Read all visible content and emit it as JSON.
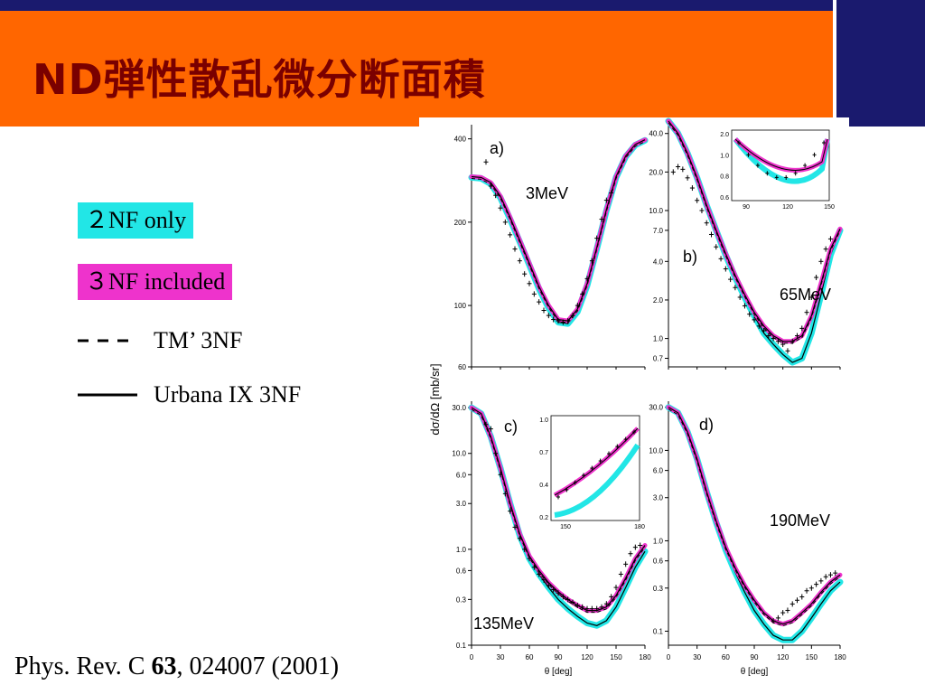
{
  "slide": {
    "title": "ND弾性散乱微分断面積",
    "legend": {
      "nf2_label": "２NF only",
      "nf3_label": "３NF included",
      "tm_label": "TM’ 3NF",
      "urbana_label": "Urbana IX 3NF"
    },
    "reference": {
      "prefix": "Phys. Rev. C ",
      "volume": "63",
      "suffix": ", 024007 (2001)"
    },
    "colors": {
      "header": "#ff6600",
      "topbar": "#1a1a6e",
      "title": "#7a0000",
      "nf2": "#22e6e6",
      "nf3": "#ee33cc"
    }
  },
  "chart_data": [
    {
      "panel": "a)",
      "energy_label": "3MeV",
      "type": "line",
      "yscale": "log",
      "ylim": [
        60,
        450
      ],
      "yticks": [
        "400",
        "200",
        "100",
        "60"
      ],
      "ytick_values": [
        400,
        200,
        100,
        60
      ],
      "xlim": [
        0,
        180
      ],
      "xticks": [],
      "series": [
        {
          "name": "2NF only",
          "x": [
            0,
            10,
            20,
            30,
            40,
            50,
            60,
            70,
            80,
            90,
            100,
            110,
            120,
            130,
            140,
            150,
            160,
            170,
            180
          ],
          "y": [
            290,
            288,
            275,
            245,
            205,
            170,
            140,
            115,
            98,
            87,
            86,
            95,
            118,
            160,
            220,
            290,
            345,
            380,
            395
          ]
        },
        {
          "name": "3NF included",
          "x": [
            0,
            10,
            20,
            30,
            40,
            50,
            60,
            70,
            80,
            90,
            100,
            110,
            120,
            130,
            140,
            150,
            160,
            170,
            180
          ],
          "y": [
            292,
            290,
            278,
            248,
            208,
            172,
            142,
            117,
            100,
            89,
            88,
            97,
            120,
            162,
            222,
            292,
            347,
            382,
            397
          ]
        },
        {
          "name": "data",
          "x": [
            15,
            20,
            25,
            30,
            35,
            40,
            45,
            50,
            55,
            60,
            65,
            70,
            75,
            80,
            85,
            90,
            95,
            100,
            105,
            110,
            115,
            120,
            125,
            130,
            135,
            140,
            145
          ],
          "y": [
            330,
            270,
            250,
            225,
            200,
            180,
            160,
            145,
            130,
            120,
            110,
            103,
            96,
            92,
            89,
            88,
            87,
            88,
            92,
            100,
            110,
            125,
            145,
            175,
            205,
            240,
            255
          ]
        }
      ]
    },
    {
      "panel": "b)",
      "energy_label": "65MeV",
      "type": "line",
      "yscale": "log",
      "ylim": [
        0.6,
        50
      ],
      "yticks": [
        "40.0",
        "20.0",
        "10.0",
        "7.0",
        "4.0",
        "2.0",
        "1.0",
        "0.7"
      ],
      "ytick_values": [
        40,
        20,
        10,
        7,
        4,
        2,
        1,
        0.7
      ],
      "xlim": [
        0,
        180
      ],
      "xticks": [],
      "series": [
        {
          "name": "2NF only",
          "x": [
            0,
            10,
            20,
            30,
            40,
            50,
            60,
            70,
            80,
            90,
            100,
            110,
            120,
            130,
            140,
            150,
            160,
            170,
            180
          ],
          "y": [
            50,
            40,
            28,
            18,
            11,
            7,
            4.5,
            3,
            2.1,
            1.5,
            1.1,
            0.9,
            0.75,
            0.65,
            0.7,
            1.1,
            2.2,
            4.5,
            7
          ]
        },
        {
          "name": "3NF included",
          "x": [
            0,
            10,
            20,
            30,
            40,
            50,
            60,
            70,
            80,
            90,
            100,
            110,
            120,
            130,
            140,
            150,
            160,
            170,
            180
          ],
          "y": [
            50,
            40,
            28,
            18,
            11,
            7,
            4.6,
            3.1,
            2.2,
            1.6,
            1.25,
            1.05,
            0.95,
            0.95,
            1.05,
            1.5,
            2.7,
            5,
            7.2
          ]
        },
        {
          "name": "data",
          "x": [
            5,
            10,
            15,
            20,
            25,
            30,
            35,
            40,
            45,
            50,
            55,
            60,
            65,
            70,
            75,
            80,
            85,
            90,
            95,
            100,
            105,
            110,
            115,
            120,
            125,
            130,
            135,
            140,
            145,
            150,
            155,
            160,
            165,
            170
          ],
          "y": [
            20,
            22,
            21,
            18,
            15,
            12,
            10,
            8,
            6.5,
            5.2,
            4.2,
            3.5,
            2.9,
            2.5,
            2.1,
            1.8,
            1.55,
            1.4,
            1.25,
            1.15,
            1.05,
            1.0,
            0.95,
            0.9,
            0.8,
            0.95,
            1.05,
            1.2,
            1.6,
            2.1,
            3,
            4,
            5,
            6
          ]
        }
      ],
      "inset": {
        "xticks": [
          "90",
          "120",
          "150"
        ],
        "yticks": [
          "2.0",
          "1.0",
          "0.8",
          "0.6"
        ]
      }
    },
    {
      "panel": "c)",
      "energy_label": "135MeV",
      "type": "line",
      "yscale": "log",
      "ylim": [
        0.1,
        35
      ],
      "yticks": [
        "30.0",
        "10.0",
        "6.0",
        "3.0",
        "1.0",
        "0.6",
        "0.3",
        "0.1"
      ],
      "ytick_values": [
        30,
        10,
        6,
        3,
        1,
        0.6,
        0.3,
        0.1
      ],
      "xlim": [
        0,
        180
      ],
      "xticks": [
        "0",
        "30",
        "60",
        "90",
        "120",
        "150",
        "180"
      ],
      "xtick_values": [
        0,
        30,
        60,
        90,
        120,
        150,
        180
      ],
      "xlabel": "θ [deg]",
      "series": [
        {
          "name": "2NF only",
          "x": [
            0,
            10,
            20,
            30,
            40,
            50,
            60,
            70,
            80,
            90,
            100,
            110,
            120,
            130,
            140,
            150,
            160,
            170,
            180
          ],
          "y": [
            30,
            26,
            15,
            7,
            3,
            1.4,
            0.8,
            0.55,
            0.4,
            0.3,
            0.24,
            0.2,
            0.17,
            0.16,
            0.18,
            0.25,
            0.4,
            0.65,
            0.95
          ]
        },
        {
          "name": "3NF included",
          "x": [
            0,
            10,
            20,
            30,
            40,
            50,
            60,
            70,
            80,
            90,
            100,
            110,
            120,
            130,
            140,
            150,
            160,
            170,
            180
          ],
          "y": [
            30,
            26,
            15,
            7,
            3,
            1.45,
            0.85,
            0.6,
            0.45,
            0.36,
            0.3,
            0.26,
            0.23,
            0.23,
            0.25,
            0.33,
            0.5,
            0.8,
            1.1
          ]
        },
        {
          "name": "data",
          "x": [
            15,
            20,
            25,
            30,
            35,
            40,
            45,
            50,
            55,
            60,
            65,
            70,
            75,
            80,
            85,
            90,
            95,
            100,
            105,
            110,
            115,
            120,
            125,
            130,
            135,
            140,
            145,
            150,
            155,
            160,
            165,
            170,
            175
          ],
          "y": [
            20,
            18,
            10,
            6,
            3.8,
            2.5,
            1.7,
            1.3,
            1.0,
            0.8,
            0.65,
            0.55,
            0.48,
            0.42,
            0.38,
            0.35,
            0.32,
            0.3,
            0.28,
            0.26,
            0.25,
            0.24,
            0.24,
            0.24,
            0.25,
            0.27,
            0.32,
            0.4,
            0.55,
            0.7,
            0.9,
            1.05,
            1.1
          ]
        }
      ],
      "inset": {
        "xticks": [
          "150",
          "180"
        ],
        "yticks": [
          "1.0",
          "0.7",
          "0.4",
          "0.2"
        ]
      }
    },
    {
      "panel": "d)",
      "energy_label": "190MeV",
      "type": "line",
      "yscale": "log",
      "ylim": [
        0.07,
        35
      ],
      "yticks": [
        "30.0",
        "10.0",
        "6.0",
        "3.0",
        "1.0",
        "0.6",
        "0.3",
        "0.1"
      ],
      "ytick_values": [
        30,
        10,
        6,
        3,
        1,
        0.6,
        0.3,
        0.1
      ],
      "xlim": [
        0,
        180
      ],
      "xticks": [
        "0",
        "30",
        "60",
        "90",
        "120",
        "150",
        "180"
      ],
      "xtick_values": [
        0,
        30,
        60,
        90,
        120,
        150,
        180
      ],
      "xlabel": "θ [deg]",
      "series": [
        {
          "name": "2NF only",
          "x": [
            0,
            10,
            20,
            30,
            40,
            50,
            60,
            70,
            80,
            90,
            100,
            110,
            120,
            130,
            140,
            150,
            160,
            170,
            180
          ],
          "y": [
            30,
            26,
            16,
            8,
            3.5,
            1.6,
            0.8,
            0.45,
            0.27,
            0.17,
            0.12,
            0.09,
            0.08,
            0.08,
            0.1,
            0.14,
            0.2,
            0.28,
            0.35
          ]
        },
        {
          "name": "3NF included",
          "x": [
            0,
            10,
            20,
            30,
            40,
            50,
            60,
            70,
            80,
            90,
            100,
            110,
            120,
            130,
            140,
            150,
            160,
            170,
            180
          ],
          "y": [
            30,
            26,
            16,
            8,
            3.5,
            1.65,
            0.85,
            0.5,
            0.32,
            0.22,
            0.16,
            0.13,
            0.12,
            0.13,
            0.16,
            0.2,
            0.27,
            0.35,
            0.42
          ]
        },
        {
          "name": "data",
          "x": [
            110,
            115,
            120,
            125,
            130,
            135,
            140,
            145,
            150,
            155,
            160,
            165,
            170,
            175
          ],
          "y": [
            0.13,
            0.14,
            0.16,
            0.17,
            0.2,
            0.22,
            0.24,
            0.28,
            0.3,
            0.33,
            0.36,
            0.4,
            0.42,
            0.44
          ]
        }
      ]
    }
  ],
  "chart_shared": {
    "ylabel": "dσ/dΩ [mb/sr]"
  }
}
